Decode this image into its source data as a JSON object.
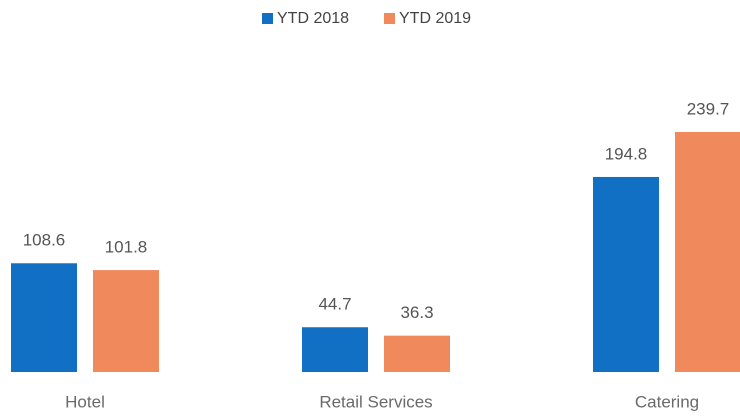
{
  "chart_data": {
    "type": "bar",
    "categories": [
      "Hotel",
      "Retail Services",
      "Catering"
    ],
    "series": [
      {
        "name": "YTD 2018",
        "color": "#1170c4",
        "values": [
          108.6,
          44.7,
          194.8
        ]
      },
      {
        "name": "YTD 2019",
        "color": "#f08a5c",
        "values": [
          101.8,
          36.3,
          239.7
        ]
      }
    ]
  }
}
